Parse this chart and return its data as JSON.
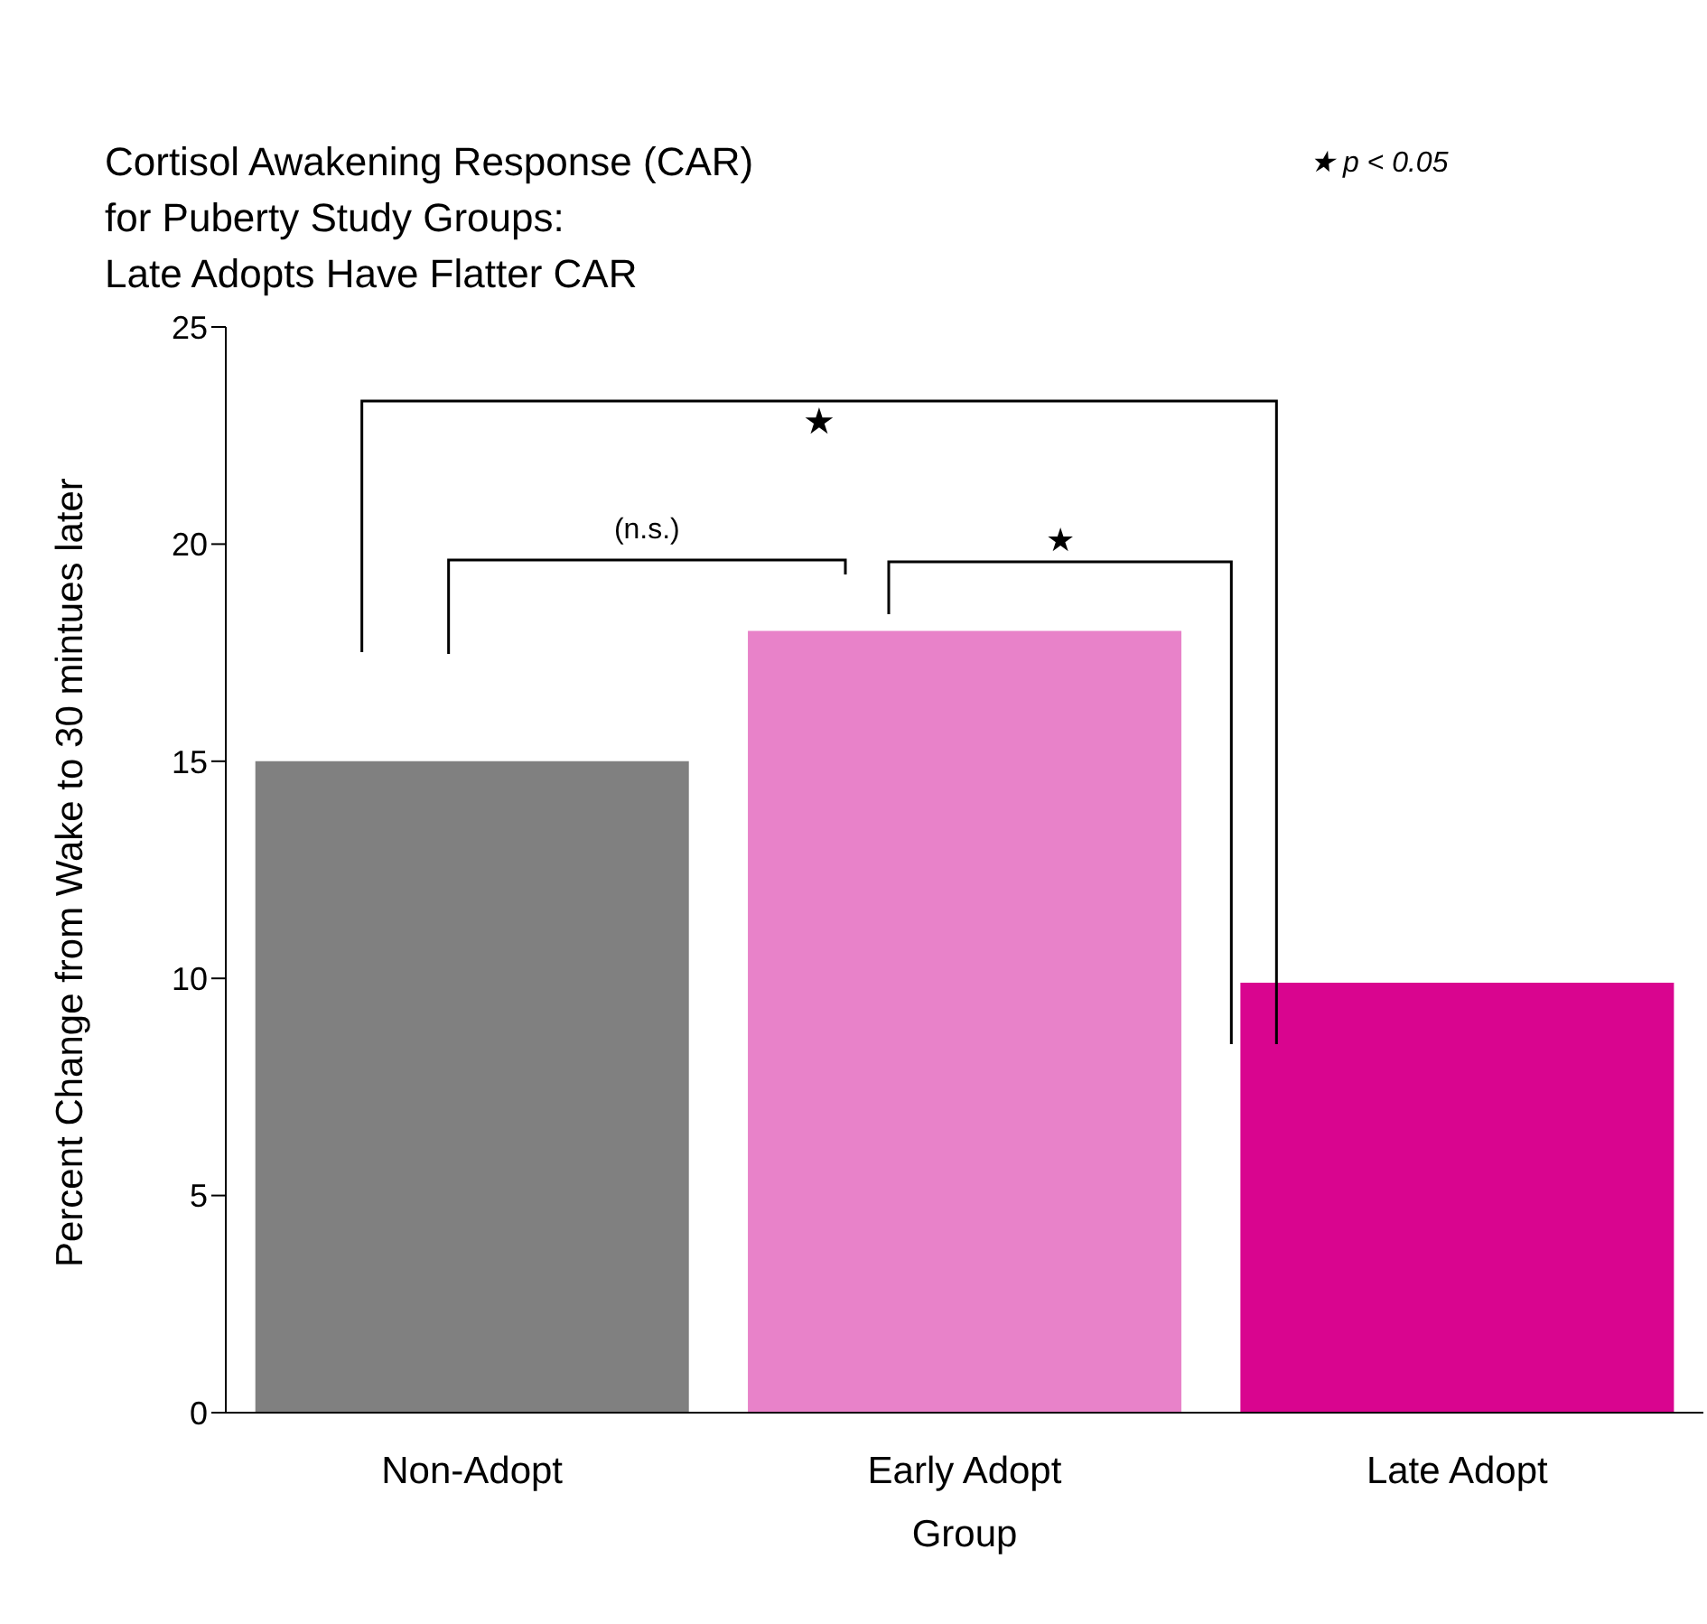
{
  "chart_data": {
    "type": "bar",
    "title": "Cortisol Awakening Response (CAR)\nfor Puberty Study Groups:\nLate Adopts Have Flatter CAR",
    "xlabel": "Group",
    "ylabel": "Percent Change from Wake to 30 mintues later",
    "categories": [
      "Non-Adopt",
      "Early Adopt",
      "Late Adopt"
    ],
    "values": [
      15,
      18,
      9.9
    ],
    "colors": [
      "#808080",
      "#e882c9",
      "#d9058f"
    ],
    "ylim": [
      0,
      25
    ],
    "yticks": [
      0,
      5,
      10,
      15,
      20,
      25
    ],
    "grid": false,
    "legend": false,
    "annotations": [
      "★",
      "(n.s.)",
      "★",
      "★ p < 0.05"
    ]
  }
}
